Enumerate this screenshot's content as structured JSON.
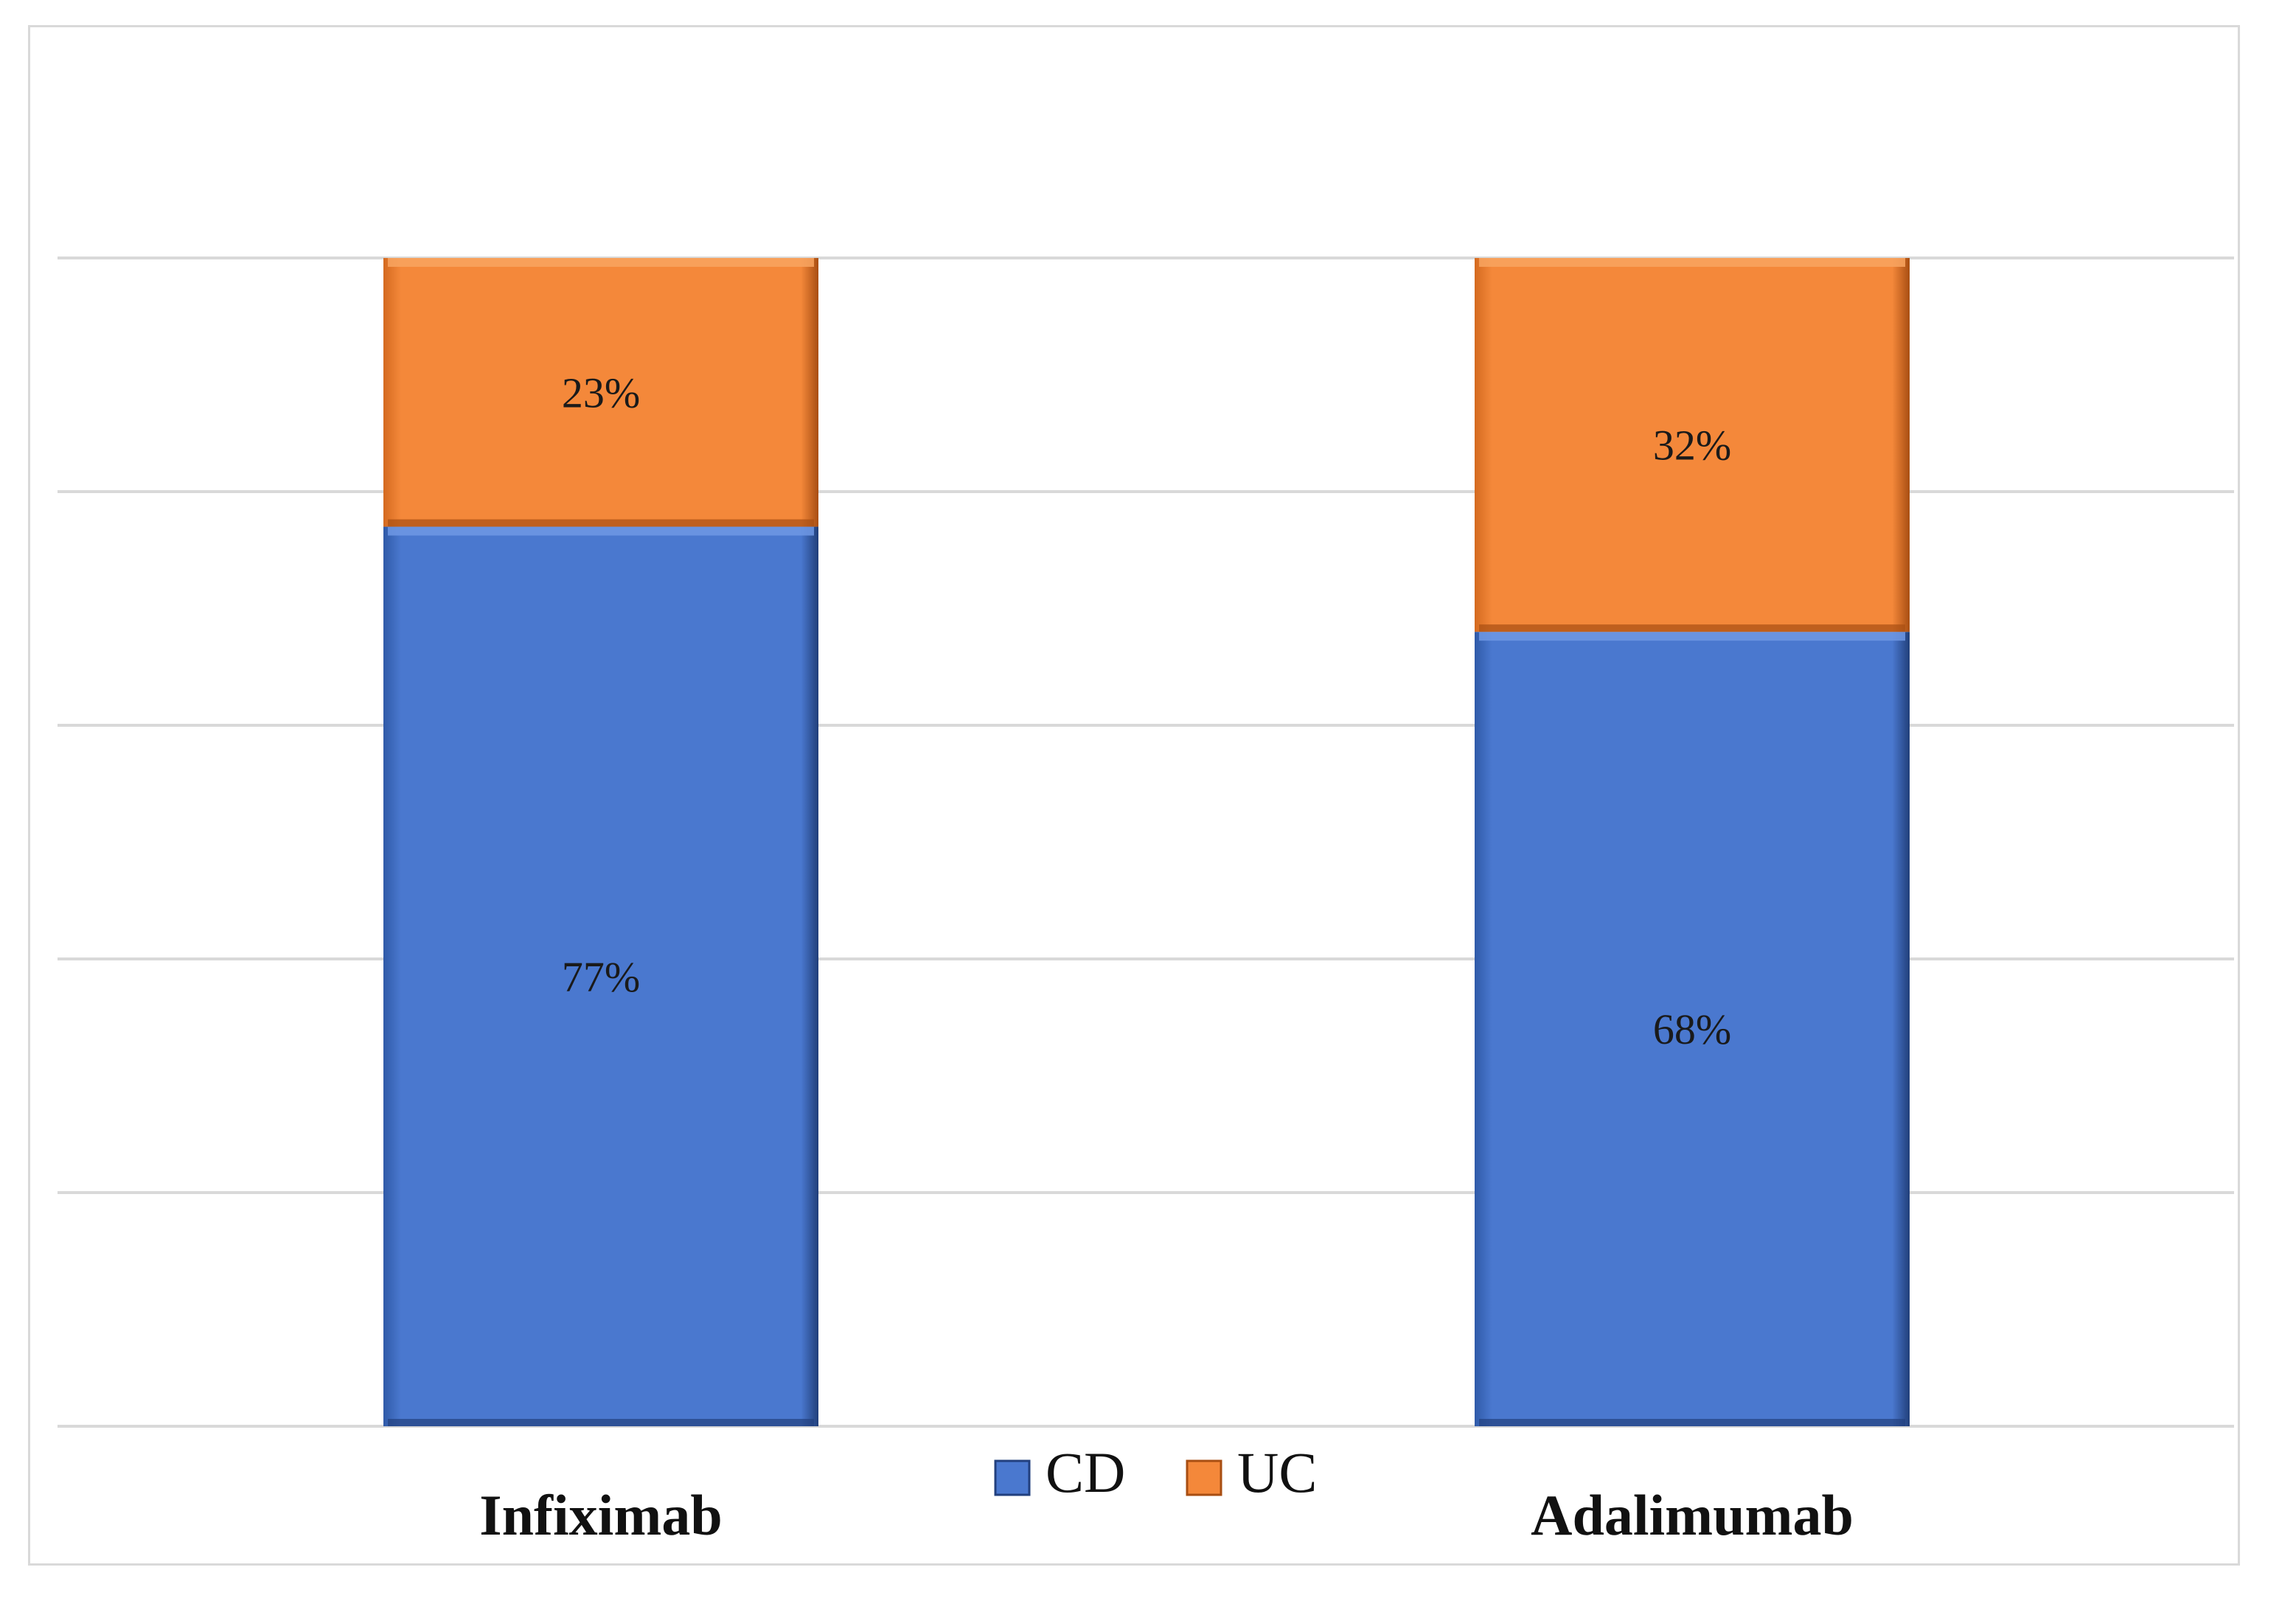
{
  "chart_data": {
    "type": "bar",
    "stacked": true,
    "percent_stacked": true,
    "title": "",
    "xlabel": "",
    "ylabel": "",
    "ylim": [
      0,
      100
    ],
    "grid": true,
    "legend_position": "bottom-center",
    "categories": [
      "Infiximab",
      "Adalimumab"
    ],
    "series": [
      {
        "name": "CD",
        "values": [
          77,
          68
        ],
        "labels": [
          "77%",
          "68%"
        ],
        "color": "#4a78cf"
      },
      {
        "name": "UC",
        "values": [
          23,
          32
        ],
        "labels": [
          "23%",
          "32%"
        ],
        "color": "#f4883a"
      }
    ]
  }
}
